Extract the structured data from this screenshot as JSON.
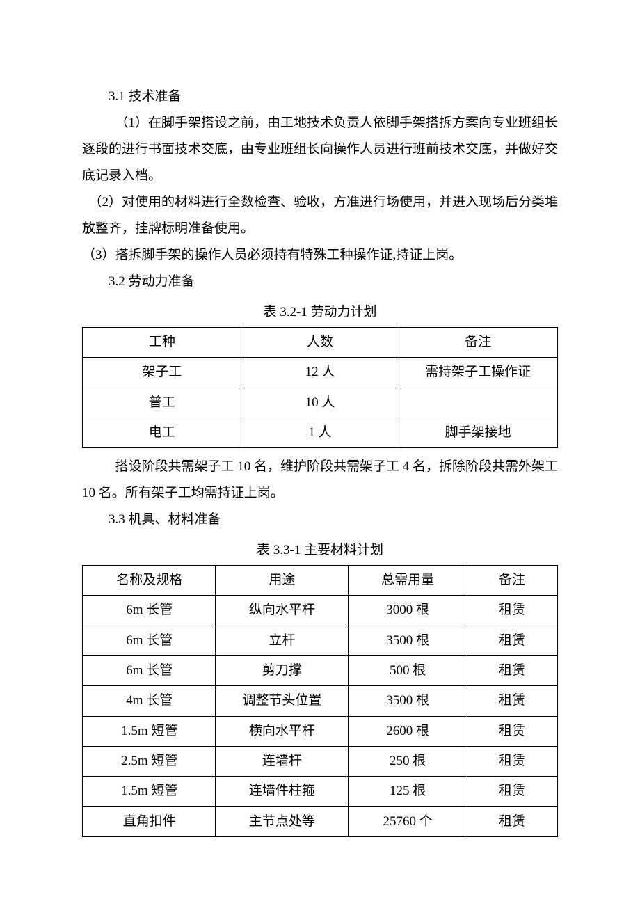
{
  "section31": {
    "heading": "3.1 技术准备",
    "p1": "（1）在脚手架搭设之前，由工地技术负责人依脚手架搭拆方案向专业班组长逐段的进行书面技术交底，由专业班组长向操作人员进行班前技术交底，并做好交底记录入档。",
    "p2": "（2）对使用的材料进行全数检查、验收，方准进行场使用，并进入现场后分类堆放整齐，挂牌标明准备使用。",
    "p3": "（3）搭拆脚手架的操作人员必须持有特殊工种操作证,持证上岗。"
  },
  "section32": {
    "heading": "3.2 劳动力准备",
    "table_caption": "表 3.2-1 劳动力计划",
    "columns": [
      "工种",
      "人数",
      "备注"
    ],
    "rows": [
      [
        "架子工",
        "12 人",
        "需持架子工操作证"
      ],
      [
        "普工",
        "10 人",
        ""
      ],
      [
        "电工",
        "1 人",
        "脚手架接地"
      ]
    ],
    "after": "搭设阶段共需架子工 10 名，维护阶段共需架子工 4 名，拆除阶段共需外架工 10 名。所有架子工均需持证上岗。"
  },
  "section33": {
    "heading": "3.3 机具、材料准备",
    "table_caption": "表 3.3-1 主要材料计划",
    "columns": [
      "名称及规格",
      "用途",
      "总需用量",
      "备注"
    ],
    "rows": [
      [
        "6m 长管",
        "纵向水平杆",
        "3000 根",
        "租赁"
      ],
      [
        "6m 长管",
        "立杆",
        "3500 根",
        "租赁"
      ],
      [
        "6m 长管",
        "剪刀撑",
        "500 根",
        "租赁"
      ],
      [
        "4m 长管",
        "调整节头位置",
        "3500 根",
        "租赁"
      ],
      [
        "1.5m 短管",
        "横向水平杆",
        "2600 根",
        "租赁"
      ],
      [
        "2.5m 短管",
        "连墙杆",
        "250 根",
        "租赁"
      ],
      [
        "1.5m 短管",
        "连墙件柱箍",
        "125 根",
        "租赁"
      ],
      [
        "直角扣件",
        "主节点处等",
        "25760 个",
        "租赁"
      ]
    ]
  },
  "table1_widths": [
    "33.3%",
    "33.3%",
    "33.3%"
  ],
  "table2_widths": [
    "28%",
    "28%",
    "25%",
    "19%"
  ]
}
